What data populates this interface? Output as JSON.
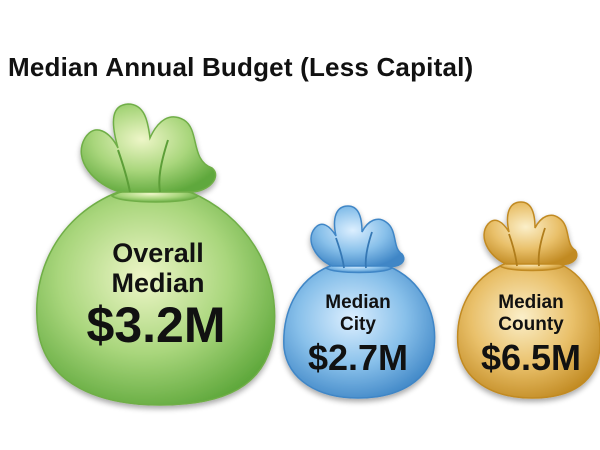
{
  "title": "Median Annual Budget (Less Capital)",
  "colors": {
    "overall": "#86c560",
    "city": "#5aa0d8",
    "county": "#d9a63e",
    "text": "#111111"
  },
  "chart_data": {
    "type": "pictogram",
    "title": "Median Annual Budget (Less Capital)",
    "unit": "$M",
    "items": [
      {
        "label_line1": "Overall",
        "label_line2": "Median",
        "value": 3.2,
        "value_label": "$3.2M",
        "color": "#86c560"
      },
      {
        "label_line1": "Median",
        "label_line2": "City",
        "value": 2.7,
        "value_label": "$2.7M",
        "color": "#5aa0d8"
      },
      {
        "label_line1": "Median",
        "label_line2": "County",
        "value": 6.5,
        "value_label": "$6.5M",
        "color": "#d9a63e"
      }
    ]
  }
}
